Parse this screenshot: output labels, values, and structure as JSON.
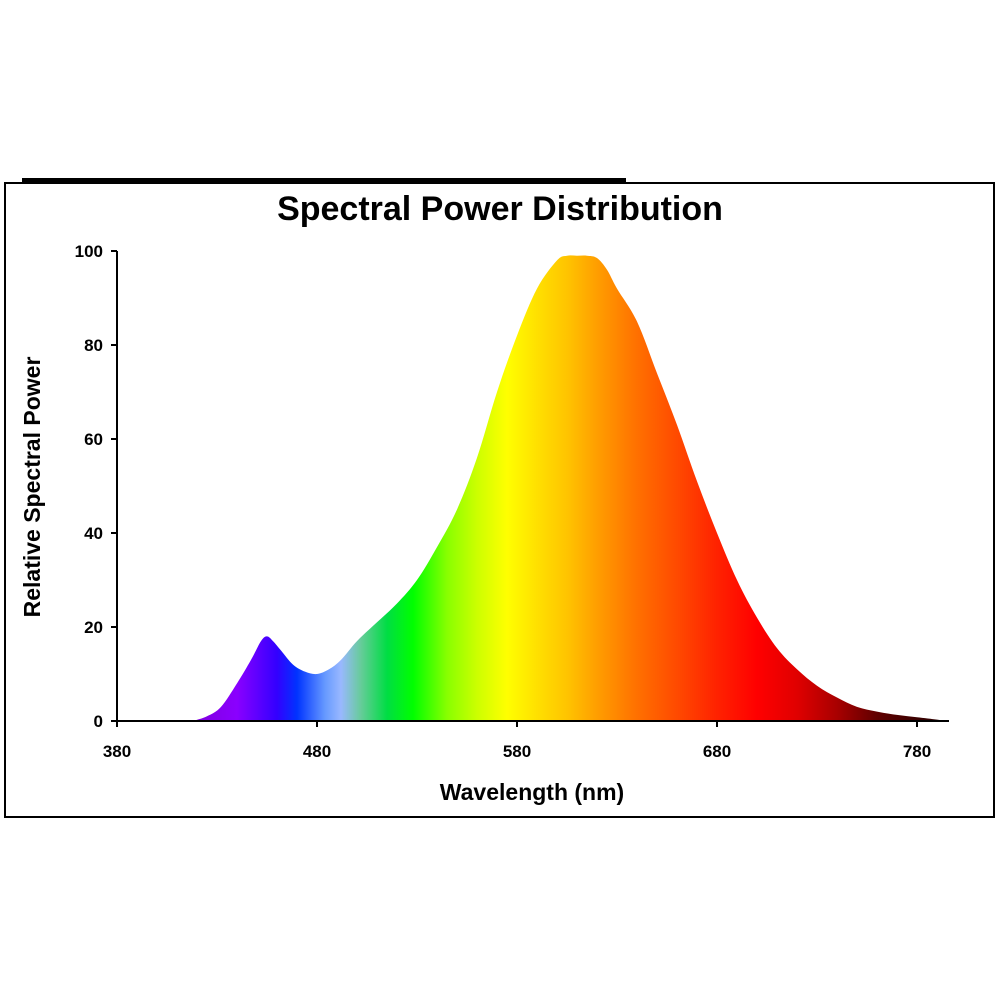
{
  "chart_data": {
    "type": "area",
    "title": "Spectral Power Distribution",
    "xlabel": "Wavelength (nm)",
    "ylabel": "Relative Spectral Power",
    "xlim": [
      380,
      795
    ],
    "ylim": [
      0,
      100
    ],
    "xticks": [
      380,
      480,
      580,
      680,
      780
    ],
    "yticks": [
      0,
      20,
      40,
      60,
      80,
      100
    ],
    "grid": false,
    "legend": "none",
    "fill": "visible-spectrum gradient (violet → blue → green → yellow → orange → red → dark red)",
    "x": [
      418,
      425,
      432,
      440,
      447,
      452,
      455,
      458,
      462,
      468,
      474,
      480,
      486,
      492,
      500,
      510,
      520,
      530,
      540,
      550,
      560,
      570,
      580,
      590,
      600,
      605,
      610,
      615,
      620,
      625,
      630,
      640,
      650,
      660,
      670,
      680,
      690,
      700,
      710,
      720,
      730,
      740,
      750,
      760,
      770,
      780,
      790,
      795
    ],
    "y": [
      0,
      1,
      3,
      8,
      13,
      17,
      18,
      17,
      15,
      12,
      10.5,
      10,
      11,
      13,
      17,
      21,
      25,
      30,
      37,
      45,
      56,
      70,
      82,
      92,
      98,
      99,
      99,
      99,
      98.5,
      96,
      92,
      85,
      74,
      63,
      51,
      40,
      30,
      22,
      15.5,
      11,
      7.5,
      5,
      3,
      2,
      1.3,
      0.8,
      0.3,
      0
    ]
  }
}
